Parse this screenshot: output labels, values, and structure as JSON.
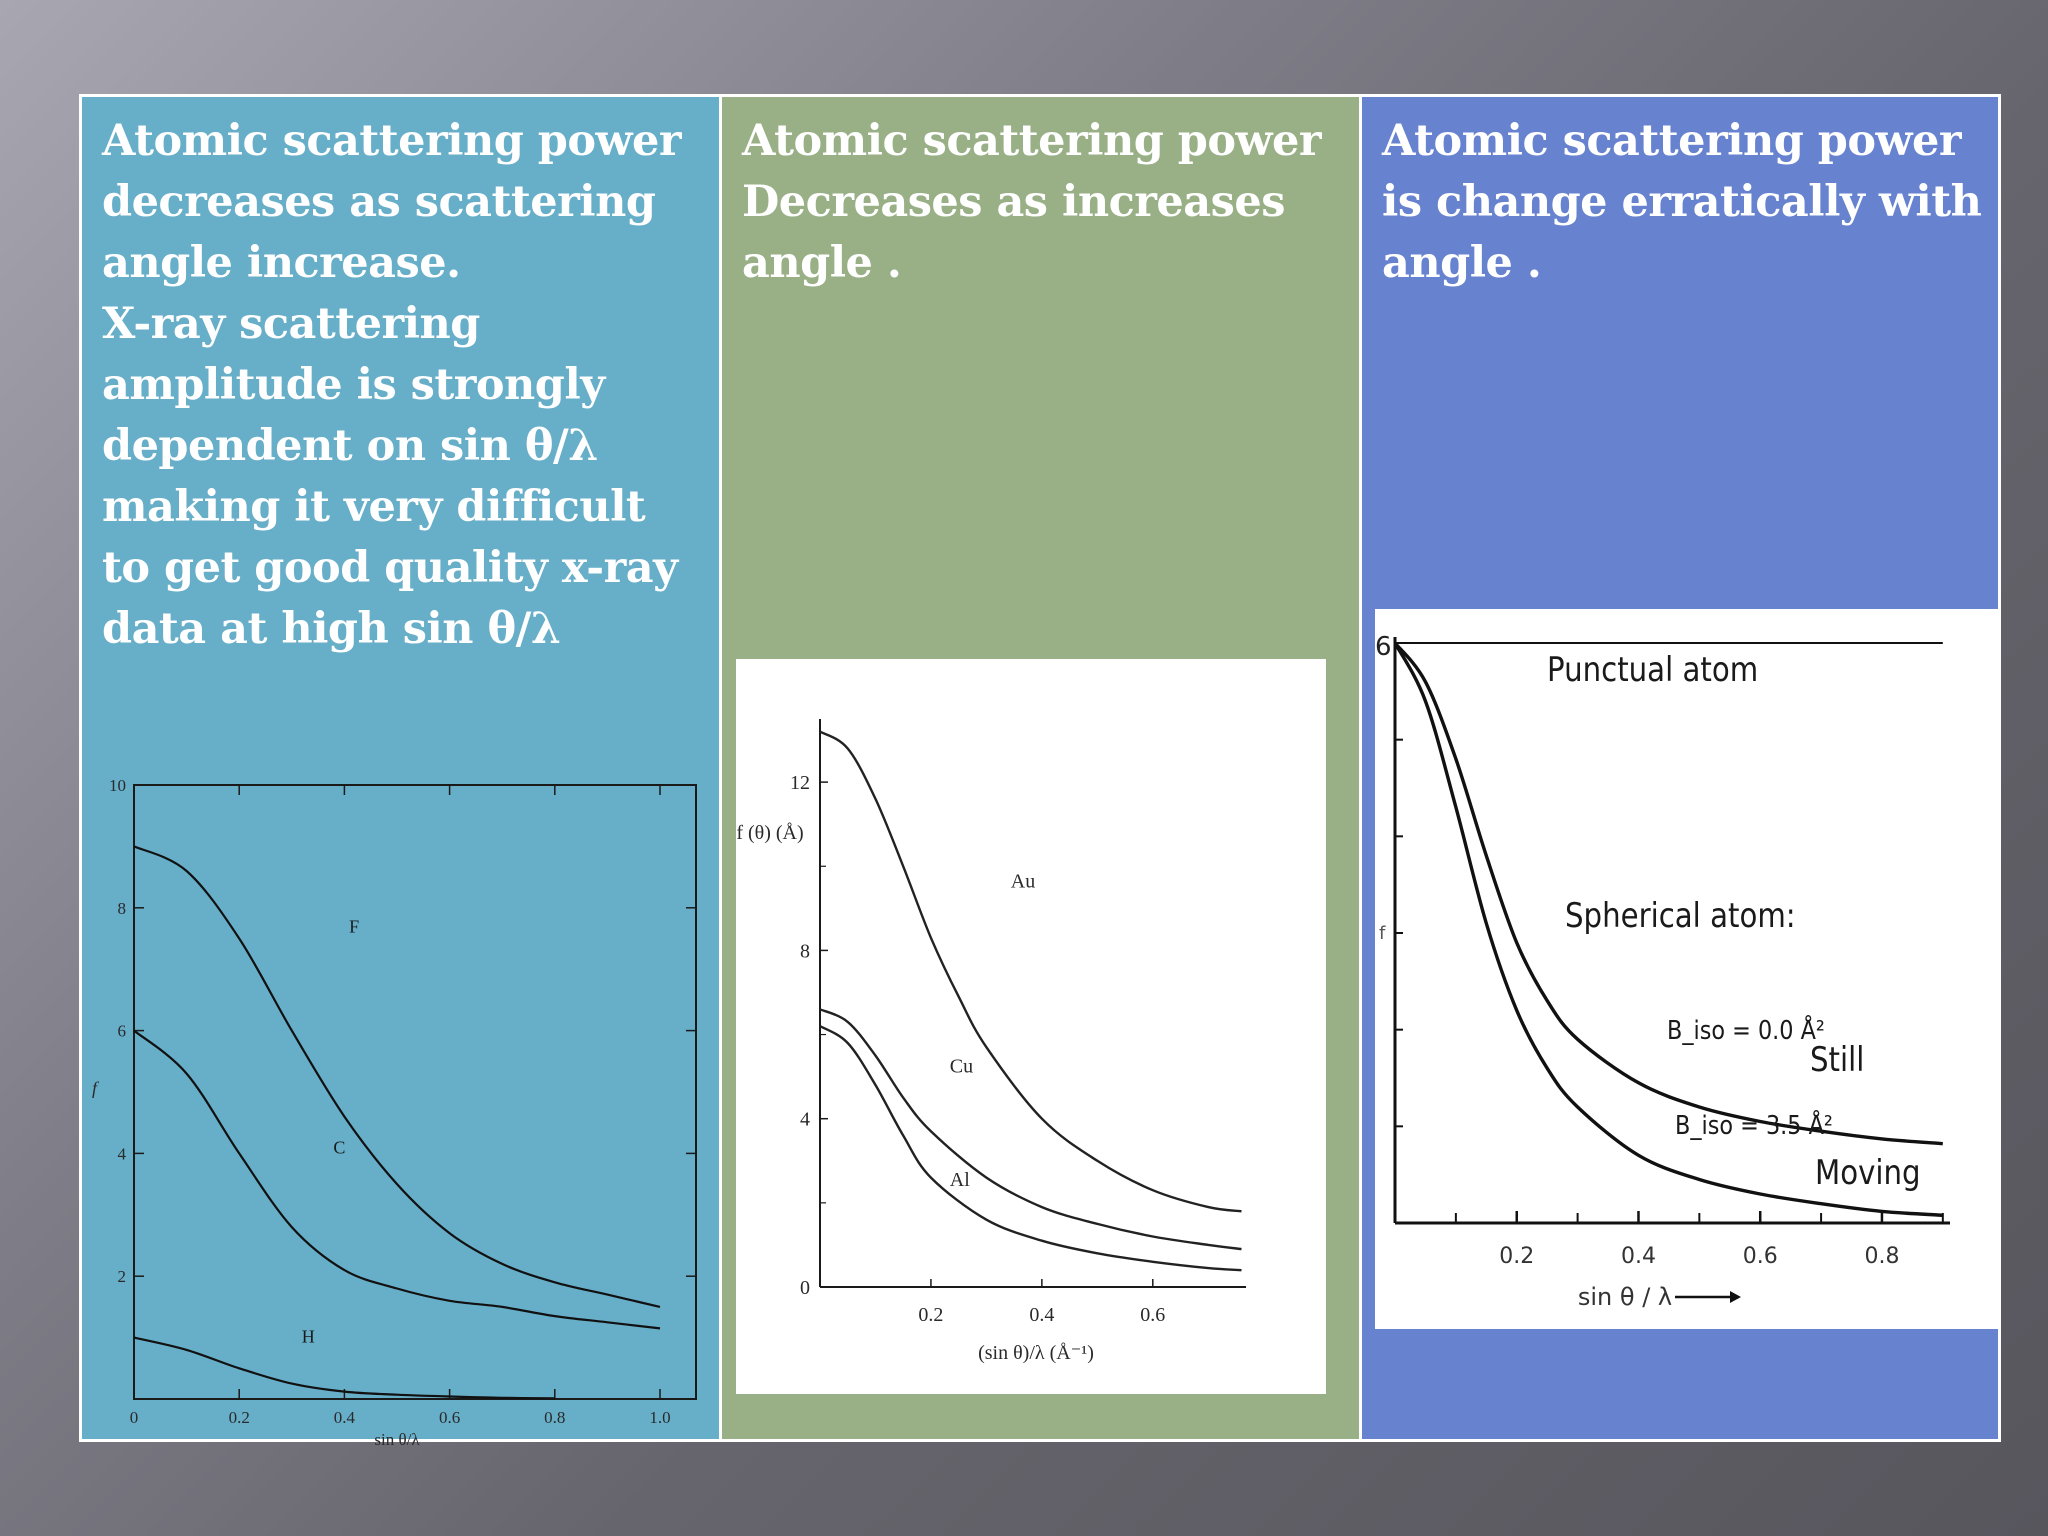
{
  "columns": [
    {
      "lines": [
        "Atomic scattering power",
        "decreases as scattering",
        "angle increase.",
        "X-ray scattering",
        "amplitude is strongly",
        "dependent on sin θ/λ",
        "making it very difficult",
        "to get good quality x-ray",
        "data at high sin θ/λ"
      ],
      "color": "#67aec9"
    },
    {
      "lines": [
        "Atomic scattering power",
        "Decreases as increases",
        "angle ."
      ],
      "color": "#99b086"
    },
    {
      "lines": [
        "Atomic scattering power",
        "is change erratically with",
        "angle ."
      ],
      "color": "#6782cf"
    }
  ],
  "chart_data": [
    {
      "type": "line",
      "xlabel": "sin θ/λ",
      "ylabel": "f",
      "xlim": [
        0,
        1.0
      ],
      "ylim": [
        0,
        10
      ],
      "x_ticks": [
        "0",
        "0.2",
        "0.4",
        "0.6",
        "0.8",
        "1.0"
      ],
      "y_ticks": [
        "2",
        "4",
        "6",
        "8",
        "10"
      ],
      "series": [
        {
          "name": "F",
          "x": [
            0,
            0.1,
            0.2,
            0.3,
            0.4,
            0.5,
            0.6,
            0.7,
            0.8,
            0.9,
            1.0
          ],
          "y": [
            9.0,
            8.6,
            7.5,
            6.0,
            4.6,
            3.5,
            2.7,
            2.2,
            1.9,
            1.7,
            1.5
          ]
        },
        {
          "name": "C",
          "x": [
            0,
            0.1,
            0.2,
            0.3,
            0.4,
            0.5,
            0.6,
            0.7,
            0.8,
            0.9,
            1.0
          ],
          "y": [
            6.0,
            5.3,
            4.0,
            2.8,
            2.1,
            1.8,
            1.6,
            1.5,
            1.35,
            1.25,
            1.15
          ]
        },
        {
          "name": "H",
          "x": [
            0,
            0.1,
            0.2,
            0.3,
            0.4,
            0.5,
            0.6,
            0.7,
            0.8
          ],
          "y": [
            1.0,
            0.8,
            0.5,
            0.25,
            0.12,
            0.07,
            0.04,
            0.02,
            0.01
          ]
        }
      ]
    },
    {
      "type": "line",
      "xlabel": "(sin θ)/λ  (Å⁻¹)",
      "ylabel": "f (θ) (Å)",
      "xlim": [
        0,
        0.75
      ],
      "ylim": [
        0,
        13
      ],
      "x_ticks": [
        "0.2",
        "0.4",
        "0.6"
      ],
      "y_ticks": [
        "0",
        "4",
        "8",
        "12"
      ],
      "series": [
        {
          "name": "Au",
          "x": [
            0,
            0.05,
            0.1,
            0.15,
            0.2,
            0.25,
            0.3,
            0.4,
            0.5,
            0.6,
            0.7,
            0.76
          ],
          "y": [
            13.2,
            12.8,
            11.6,
            10.0,
            8.3,
            6.9,
            5.7,
            4.0,
            3.0,
            2.3,
            1.9,
            1.8
          ]
        },
        {
          "name": "Cu",
          "x": [
            0,
            0.05,
            0.1,
            0.15,
            0.2,
            0.3,
            0.4,
            0.5,
            0.6,
            0.7,
            0.76
          ],
          "y": [
            6.6,
            6.3,
            5.5,
            4.5,
            3.7,
            2.6,
            1.9,
            1.5,
            1.2,
            1.0,
            0.9
          ]
        },
        {
          "name": "Al",
          "x": [
            0,
            0.05,
            0.1,
            0.15,
            0.2,
            0.3,
            0.4,
            0.5,
            0.6,
            0.7,
            0.76
          ],
          "y": [
            6.2,
            5.8,
            4.8,
            3.6,
            2.6,
            1.6,
            1.1,
            0.8,
            0.6,
            0.45,
            0.4
          ]
        }
      ]
    },
    {
      "type": "line",
      "xlabel": "sin θ / λ",
      "ylabel": "f",
      "xlim": [
        0,
        1.0
      ],
      "ylim": [
        0,
        6
      ],
      "x_ticks": [
        "0.2",
        "0.4",
        "0.6",
        "0.8"
      ],
      "y_ticks": [
        "6"
      ],
      "annotations": [
        "Punctual atom",
        "Spherical atom:",
        "B_iso = 0.0 Å²",
        "Still",
        "B_iso = 3.5 Å²",
        "Moving"
      ],
      "series": [
        {
          "name": "Punctual atom",
          "x": [
            0,
            0.9
          ],
          "y": [
            6,
            6
          ]
        },
        {
          "name": "Still",
          "x": [
            0,
            0.05,
            0.1,
            0.15,
            0.2,
            0.25,
            0.3,
            0.4,
            0.5,
            0.6,
            0.7,
            0.8,
            0.9
          ],
          "y": [
            6.0,
            5.6,
            4.8,
            3.8,
            2.9,
            2.3,
            1.9,
            1.45,
            1.2,
            1.05,
            0.95,
            0.87,
            0.82
          ]
        },
        {
          "name": "Moving",
          "x": [
            0,
            0.05,
            0.1,
            0.15,
            0.2,
            0.25,
            0.3,
            0.4,
            0.5,
            0.6,
            0.7,
            0.8,
            0.9
          ],
          "y": [
            6.0,
            5.4,
            4.3,
            3.1,
            2.2,
            1.6,
            1.2,
            0.7,
            0.45,
            0.3,
            0.2,
            0.12,
            0.08
          ]
        }
      ]
    }
  ]
}
